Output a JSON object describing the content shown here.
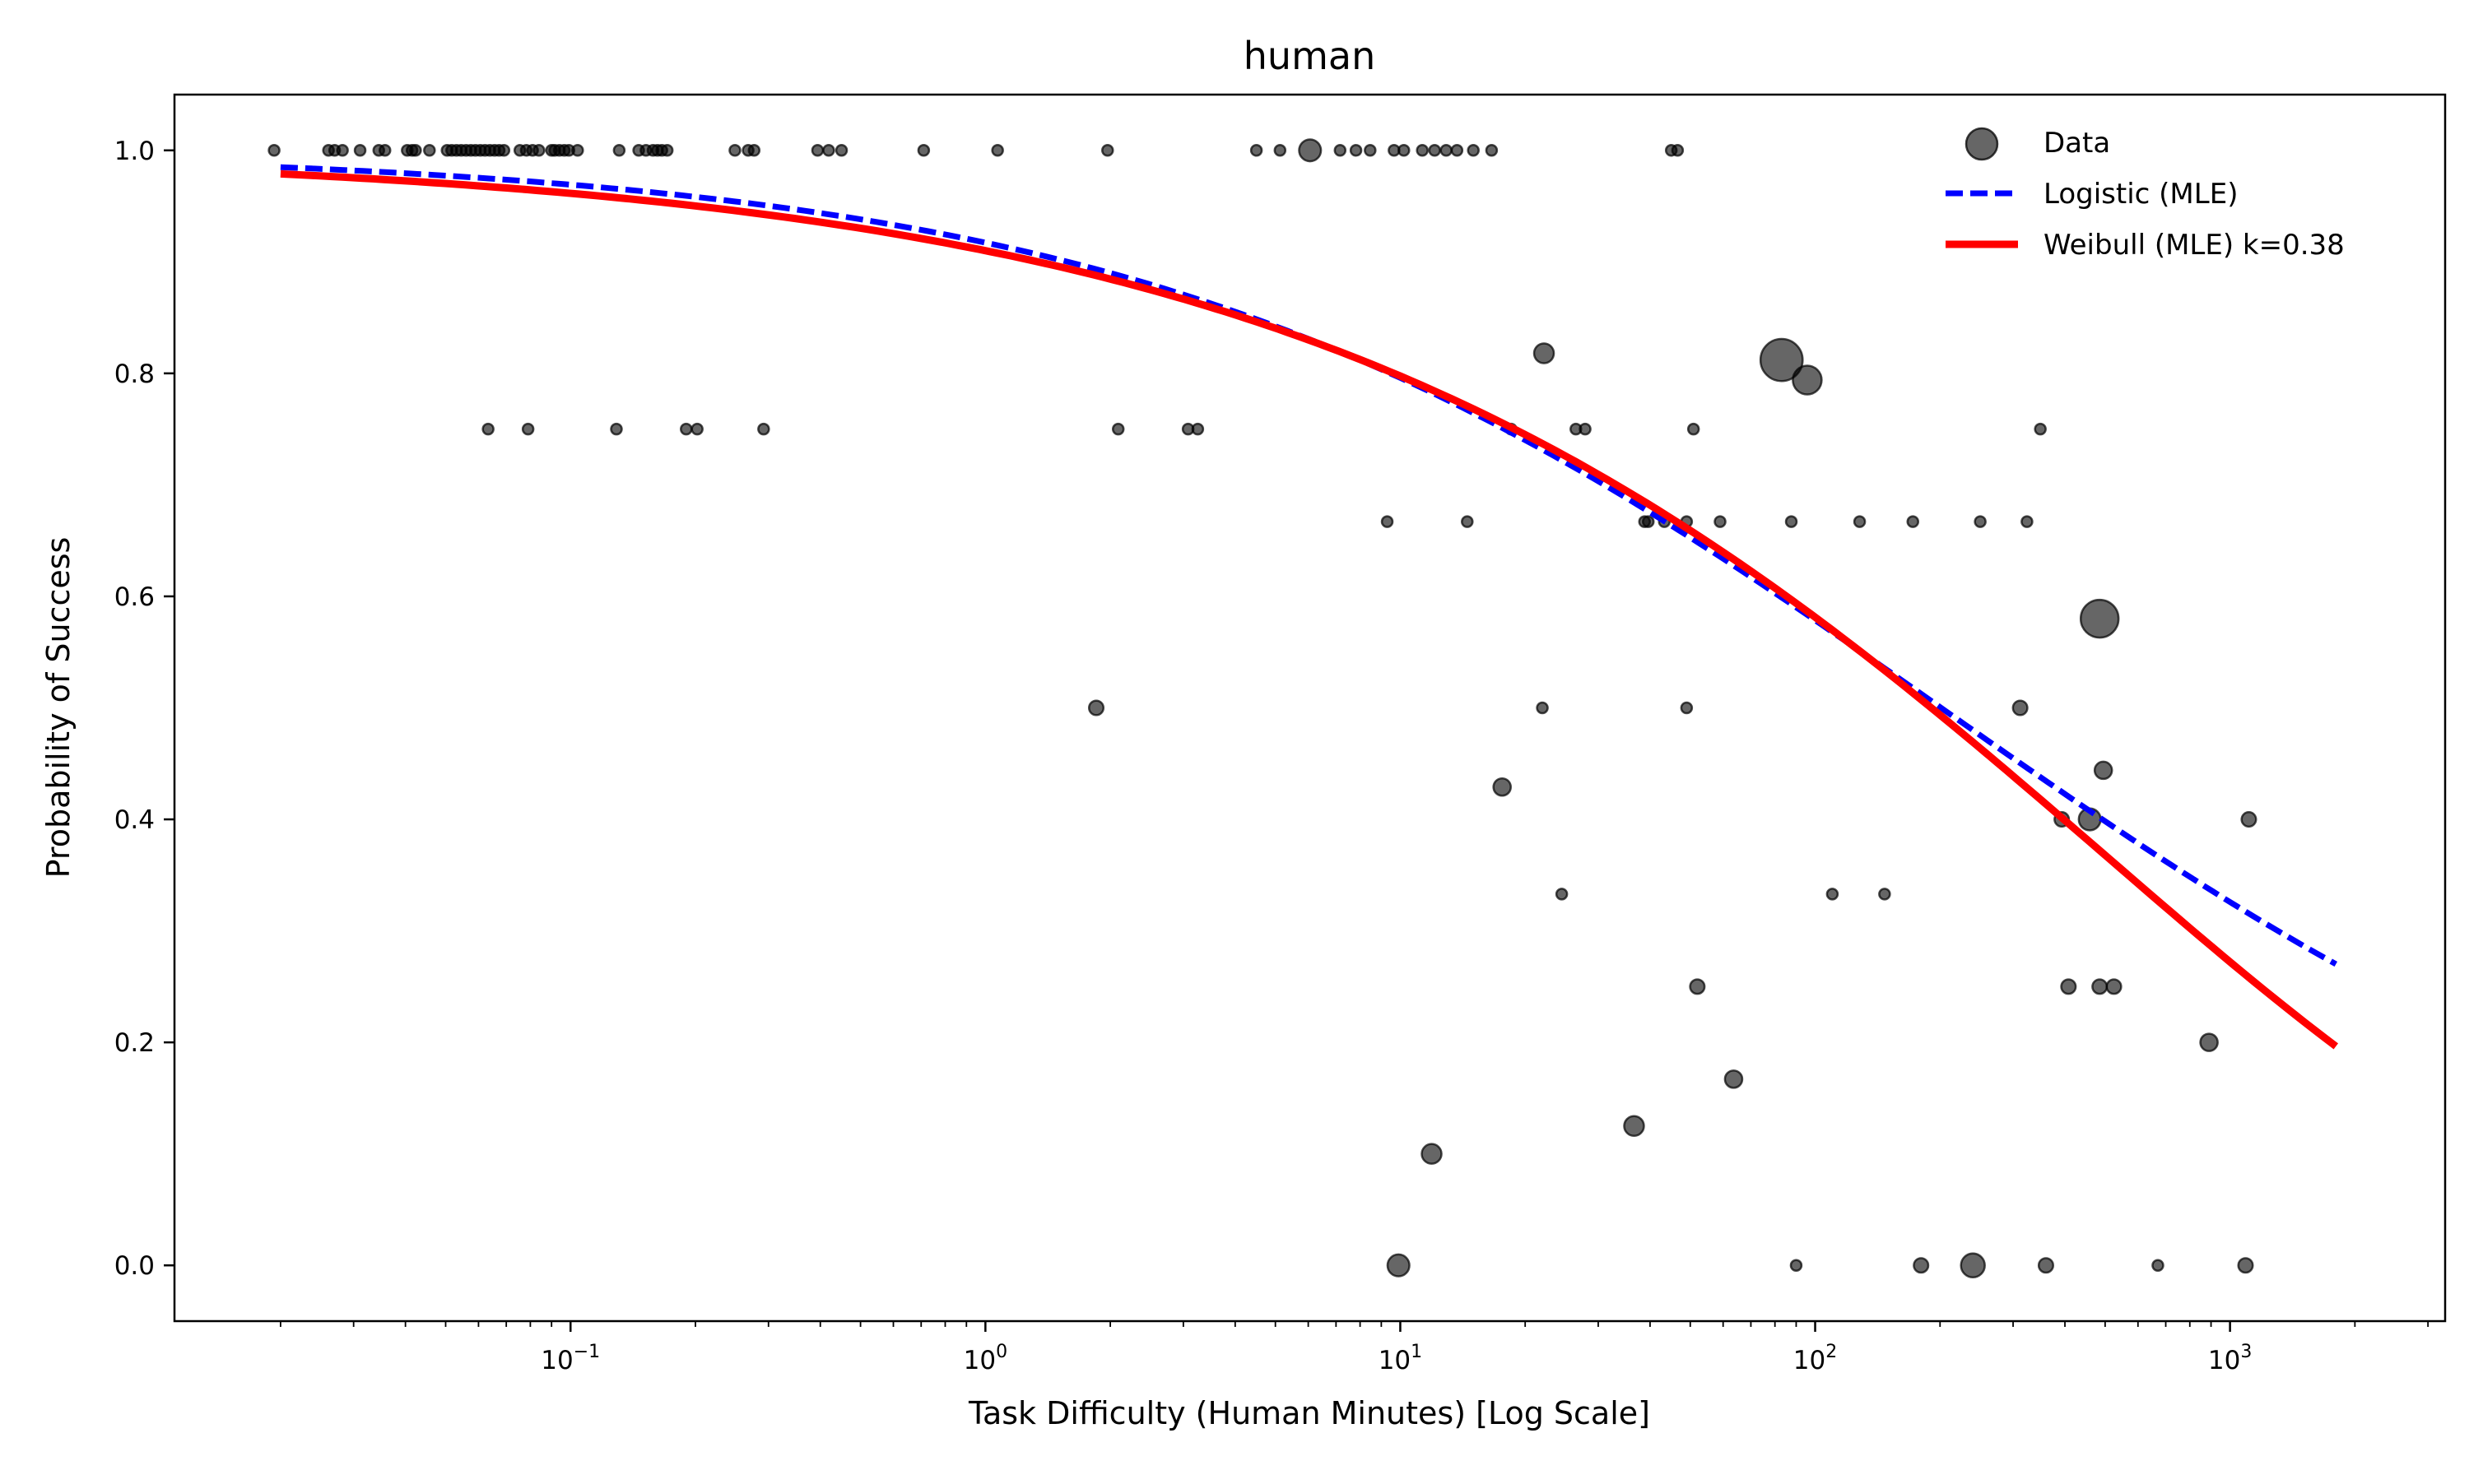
{
  "chart_data": {
    "type": "scatter",
    "title": "human",
    "xlabel": "Task Difficulty (Human Minutes) [Log Scale]",
    "ylabel": "Probability of Success",
    "xscale": "log",
    "xlim": [
      0.0111,
      3300
    ],
    "ylim": [
      -0.05,
      1.05
    ],
    "x_ticks": [
      {
        "value": 0.1,
        "base": "10",
        "exp": "−1"
      },
      {
        "value": 1,
        "base": "10",
        "exp": "0"
      },
      {
        "value": 10,
        "base": "10",
        "exp": "1"
      },
      {
        "value": 100,
        "base": "10",
        "exp": "2"
      },
      {
        "value": 1000,
        "base": "10",
        "exp": "3"
      }
    ],
    "y_ticks": [
      "0.0",
      "0.2",
      "0.4",
      "0.6",
      "0.8",
      "1.0"
    ],
    "grid": false,
    "legend": {
      "placement": "top-right",
      "entries": [
        "Data",
        "Logistic (MLE)",
        "Weibull (MLE) k=0.38"
      ]
    },
    "colors": {
      "data": "#000000",
      "logistic": "#0000ff",
      "weibull": "#ff0000"
    },
    "fits": {
      "logistic": {
        "name": "Logistic (MLE)",
        "style": "dashed",
        "intercept": 2.405,
        "slope_per_log10": -1.044,
        "x_range": [
          0.02,
          1800
        ]
      },
      "weibull": {
        "name": "Weibull (MLE) k=0.38",
        "style": "solid",
        "k": 0.38,
        "scale": 500,
        "x_range": [
          0.02,
          1800
        ]
      }
    },
    "series": [
      {
        "name": "Data",
        "points": [
          [
            0.0193,
            1,
            1
          ],
          [
            0.0261,
            1,
            1
          ],
          [
            0.027,
            1,
            1
          ],
          [
            0.0282,
            1,
            1
          ],
          [
            0.0311,
            1,
            1
          ],
          [
            0.0345,
            1,
            1
          ],
          [
            0.0357,
            1,
            1
          ],
          [
            0.0404,
            1,
            1
          ],
          [
            0.0415,
            1,
            1
          ],
          [
            0.0423,
            1,
            1
          ],
          [
            0.0457,
            1,
            1
          ],
          [
            0.0504,
            1,
            1
          ],
          [
            0.0517,
            1,
            1
          ],
          [
            0.0531,
            1,
            1
          ],
          [
            0.0545,
            1,
            1
          ],
          [
            0.056,
            1,
            1
          ],
          [
            0.0575,
            1,
            1
          ],
          [
            0.059,
            1,
            1
          ],
          [
            0.0606,
            1,
            1
          ],
          [
            0.0622,
            1,
            1
          ],
          [
            0.0639,
            1,
            1
          ],
          [
            0.0656,
            1,
            1
          ],
          [
            0.0673,
            1,
            1
          ],
          [
            0.0691,
            1,
            1
          ],
          [
            0.0755,
            1,
            1
          ],
          [
            0.0782,
            1,
            1
          ],
          [
            0.081,
            1,
            1
          ],
          [
            0.0839,
            1,
            1
          ],
          [
            0.09,
            1,
            1
          ],
          [
            0.0916,
            1,
            1
          ],
          [
            0.094,
            1,
            1
          ],
          [
            0.0966,
            1,
            1
          ],
          [
            0.0991,
            1,
            1
          ],
          [
            0.104,
            1,
            1
          ],
          [
            0.131,
            1,
            1
          ],
          [
            0.146,
            1,
            1
          ],
          [
            0.152,
            1,
            1
          ],
          [
            0.158,
            1,
            1
          ],
          [
            0.162,
            1,
            1
          ],
          [
            0.166,
            1,
            1
          ],
          [
            0.171,
            1,
            1
          ],
          [
            0.249,
            1,
            1
          ],
          [
            0.268,
            1,
            1
          ],
          [
            0.277,
            1,
            1
          ],
          [
            0.394,
            1,
            1
          ],
          [
            0.419,
            1,
            1
          ],
          [
            0.45,
            1,
            1
          ],
          [
            0.71,
            1,
            1
          ],
          [
            1.07,
            1,
            1
          ],
          [
            1.97,
            1,
            1
          ],
          [
            4.5,
            1,
            1
          ],
          [
            5.13,
            1,
            1
          ],
          [
            6.06,
            1,
            5
          ],
          [
            7.16,
            1,
            1
          ],
          [
            7.82,
            1,
            1
          ],
          [
            8.46,
            1,
            1
          ],
          [
            9.66,
            1,
            1
          ],
          [
            10.2,
            1,
            1
          ],
          [
            11.3,
            1,
            1
          ],
          [
            12.1,
            1,
            1
          ],
          [
            12.9,
            1,
            1
          ],
          [
            13.7,
            1,
            1
          ],
          [
            15.0,
            1,
            1
          ],
          [
            16.6,
            1,
            1
          ],
          [
            45.0,
            1,
            1
          ],
          [
            46.6,
            1,
            1
          ],
          [
            0.0633,
            0.75,
            1
          ],
          [
            0.079,
            0.75,
            1
          ],
          [
            0.129,
            0.75,
            1
          ],
          [
            0.19,
            0.75,
            1
          ],
          [
            0.202,
            0.75,
            1
          ],
          [
            0.292,
            0.75,
            1
          ],
          [
            2.09,
            0.75,
            1
          ],
          [
            3.08,
            0.75,
            1
          ],
          [
            3.25,
            0.75,
            1
          ],
          [
            18.5,
            0.75,
            1
          ],
          [
            26.5,
            0.75,
            1
          ],
          [
            27.9,
            0.75,
            1
          ],
          [
            50.9,
            0.75,
            1
          ],
          [
            349,
            0.75,
            1
          ],
          [
            9.3,
            0.667,
            1
          ],
          [
            14.5,
            0.667,
            1
          ],
          [
            38.8,
            0.667,
            1
          ],
          [
            39.6,
            0.667,
            1
          ],
          [
            43.3,
            0.667,
            1
          ],
          [
            49,
            0.667,
            1
          ],
          [
            59,
            0.667,
            1
          ],
          [
            87.6,
            0.667,
            1
          ],
          [
            128,
            0.667,
            1
          ],
          [
            172,
            0.667,
            1
          ],
          [
            250,
            0.667,
            1
          ],
          [
            324,
            0.667,
            1
          ],
          [
            22.2,
            0.818,
            4
          ],
          [
            83,
            0.812,
            20
          ],
          [
            95.7,
            0.794,
            9
          ],
          [
            485,
            0.58,
            16
          ],
          [
            1.85,
            0.5,
            2
          ],
          [
            22,
            0.5,
            1
          ],
          [
            49,
            0.5,
            1
          ],
          [
            312,
            0.5,
            2
          ],
          [
            17.6,
            0.429,
            3
          ],
          [
            495,
            0.444,
            3
          ],
          [
            393,
            0.4,
            2
          ],
          [
            459,
            0.4,
            5
          ],
          [
            1110,
            0.4,
            2
          ],
          [
            24.5,
            0.333,
            1
          ],
          [
            110,
            0.333,
            1
          ],
          [
            147,
            0.333,
            1
          ],
          [
            52,
            0.25,
            2
          ],
          [
            408,
            0.25,
            2
          ],
          [
            485,
            0.25,
            2
          ],
          [
            525,
            0.25,
            2
          ],
          [
            890,
            0.2,
            3
          ],
          [
            63.6,
            0.167,
            3
          ],
          [
            36.6,
            0.125,
            4
          ],
          [
            11.9,
            0.1,
            4
          ],
          [
            9.9,
            0,
            5
          ],
          [
            90,
            0,
            1
          ],
          [
            180,
            0,
            2
          ],
          [
            240,
            0,
            6
          ],
          [
            360,
            0,
            2
          ],
          [
            670,
            0,
            1
          ],
          [
            1090,
            0,
            2
          ]
        ]
      }
    ]
  }
}
